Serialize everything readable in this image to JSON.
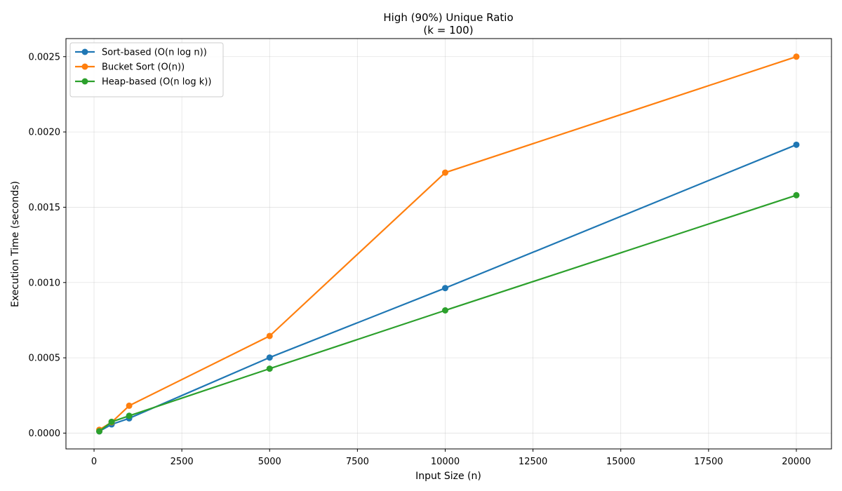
{
  "chart_data": {
    "type": "line",
    "title": "High (90%) Unique Ratio",
    "subtitle": "(k = 100)",
    "xlabel": "Input Size (n)",
    "ylabel": "Execution Time (seconds)",
    "xlim": [
      -800,
      21000
    ],
    "ylim": [
      -0.000105,
      0.00262
    ],
    "xticks": [
      0,
      2500,
      5000,
      7500,
      10000,
      12500,
      15000,
      17500,
      20000
    ],
    "xtick_labels": [
      "0",
      "2500",
      "5000",
      "7500",
      "10000",
      "12500",
      "15000",
      "17500",
      "20000"
    ],
    "yticks": [
      0,
      0.0005,
      0.001,
      0.0015,
      0.002,
      0.0025
    ],
    "ytick_labels": [
      "0.0000",
      "0.0005",
      "0.0010",
      "0.0015",
      "0.0020",
      "0.0025"
    ],
    "grid": true,
    "legend_position": "top-left",
    "x": [
      150,
      500,
      1000,
      5000,
      10000,
      20000
    ],
    "series": [
      {
        "name": "Sort-based (O(n log n))",
        "color": "#1f77b4",
        "values": [
          1.2e-05,
          5.8e-05,
          9.8e-05,
          0.000502,
          0.000963,
          0.001915
        ]
      },
      {
        "name": "Bucket Sort (O(n))",
        "color": "#ff7f0e",
        "values": [
          2.2e-05,
          7.2e-05,
          0.000182,
          0.000645,
          0.00173,
          0.0025
        ]
      },
      {
        "name": "Heap-based (O(n log k))",
        "color": "#2ca02c",
        "values": [
          1.2e-05,
          7.5e-05,
          0.000115,
          0.000428,
          0.000815,
          0.00158
        ]
      }
    ]
  }
}
